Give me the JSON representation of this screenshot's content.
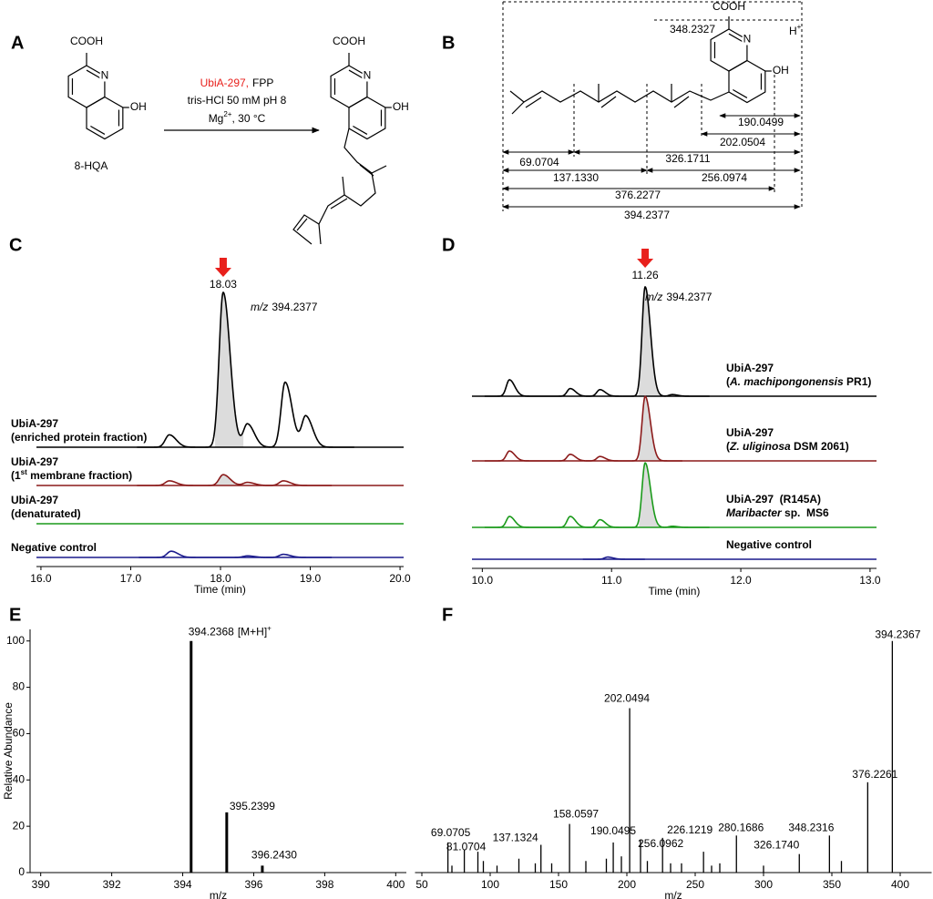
{
  "panel_labels": [
    "A",
    "B",
    "C",
    "D",
    "E",
    "F"
  ],
  "panels": {
    "A": {
      "reactant": {
        "cooh": "COOH",
        "n": "N",
        "oh": "OH",
        "name": "8-HQA"
      },
      "conditions": {
        "enzyme": "UbiA-297,",
        "cofactor": "FPP",
        "buffer": "tris-HCl 50 mM pH 8",
        "metal": "Mg",
        "charge": "2+",
        "temperature": ", 30 °C"
      },
      "product": {
        "cooh": "COOH",
        "n": "N",
        "oh": "OH"
      }
    },
    "B": {
      "cooh": "COOH",
      "n": "N",
      "oh": "OH",
      "proton": "H",
      "proton_charge": "+",
      "parent_fragment": "348.2327",
      "fragments": [
        "190.0499",
        "202.0504",
        "69.0704",
        "326.1711",
        "137.1330",
        "256.0974",
        "376.2277",
        "394.2377"
      ]
    }
  },
  "chart_data": [
    {
      "type": "chromatogram",
      "xlabel": "Time (min)",
      "xlim": [
        15.95,
        20.04
      ],
      "xticks": [
        {
          "value": 16,
          "label": "16.0"
        },
        {
          "value": 17,
          "label": "17.0"
        },
        {
          "value": 18,
          "label": "18.0"
        },
        {
          "value": 19,
          "label": "19.0"
        },
        {
          "value": 20,
          "label": "20.0"
        }
      ],
      "peak_label": 18.03,
      "annotation": {
        "prefix": "m/z",
        "text": "394.2377"
      },
      "legend": "left",
      "series": [
        {
          "name": "UbiA-297",
          "detail": [
            {
              "text": "(enriched protein fraction)"
            }
          ],
          "color": "#000000",
          "x": [
            17.43,
            18.03,
            18.3,
            18.72,
            18.95
          ],
          "values": [
            0.08,
            1.0,
            0.15,
            0.42,
            0.2
          ]
        },
        {
          "name": "UbiA-297",
          "detail": [
            {
              "text": "(1"
            },
            {
              "text": "st",
              "style": "superscript"
            },
            {
              "text": " membrane fraction)"
            }
          ],
          "color": "#8b1a1a",
          "x": [
            17.43,
            18.03,
            18.3,
            18.7
          ],
          "values": [
            0.03,
            0.07,
            0.02,
            0.03
          ]
        },
        {
          "name": "UbiA-297",
          "detail": [
            {
              "text": "(denaturated)"
            }
          ],
          "color": "#1a9a1a",
          "x": [],
          "values": []
        },
        {
          "name": "Negative control",
          "color": "#1a1a8c",
          "x": [
            17.45,
            18.3,
            18.7
          ],
          "values": [
            0.04,
            0.01,
            0.02
          ]
        }
      ]
    },
    {
      "type": "chromatogram",
      "xlabel": "Time (min)",
      "xlim": [
        9.92,
        13.05
      ],
      "xticks": [
        {
          "value": 10,
          "label": "10.0"
        },
        {
          "value": 11,
          "label": "11.0"
        },
        {
          "value": 12,
          "label": "12.0"
        },
        {
          "value": 13,
          "label": "13.0"
        }
      ],
      "peak_label": 11.26,
      "annotation": {
        "prefix": "m/z",
        "text": "394.2377"
      },
      "legend": "right",
      "series": [
        {
          "name": "UbiA-297",
          "detail": [
            {
              "text": "("
            },
            {
              "text": "A. machipongonensis",
              "style": "italic"
            },
            {
              "text": " PR1)"
            }
          ],
          "color": "#000000",
          "x": [
            10.21,
            10.68,
            10.91,
            11.26,
            11.47
          ],
          "values": [
            0.15,
            0.07,
            0.06,
            1.0,
            0.015
          ]
        },
        {
          "name": "UbiA-297",
          "detail": [
            {
              "text": "("
            },
            {
              "text": "Z. uliginosa",
              "style": "italic"
            },
            {
              "text": " DSM 2061)"
            }
          ],
          "color": "#8b1a1a",
          "x": [
            10.21,
            10.68,
            10.91,
            11.26
          ],
          "values": [
            0.09,
            0.06,
            0.04,
            0.59
          ]
        },
        {
          "name": "UbiA-297  (R145A)",
          "detail": [
            {
              "text": "Maribacter",
              "style": "italic"
            },
            {
              "text": " sp.  MS6"
            }
          ],
          "color": "#1a9a1a",
          "x": [
            10.21,
            10.68,
            10.91,
            11.26,
            11.47
          ],
          "values": [
            0.1,
            0.1,
            0.07,
            0.59,
            0.01
          ]
        },
        {
          "name": "Negative control",
          "color": "#1a1a8c",
          "x": [
            10.97
          ],
          "values": [
            0.02
          ]
        }
      ]
    },
    {
      "type": "spectrum",
      "xlabel": "m/z",
      "ylabel": "Relative Abundance",
      "xlim": [
        389.7,
        400.3
      ],
      "ylim": [
        0,
        105
      ],
      "xticks": [
        390,
        392,
        394,
        396,
        398,
        400
      ],
      "yticks": [
        0,
        20,
        40,
        60,
        80,
        100
      ],
      "x": [
        394.2368,
        395.2399,
        396.243
      ],
      "values": [
        100,
        26,
        3
      ],
      "x_labels": [
        "394.2368",
        "395.2399",
        "396.2430"
      ],
      "label_colors": [
        "#000000",
        "#000000",
        "#000000"
      ],
      "annotation": {
        "text": "[M+H]",
        "sup": "+"
      }
    },
    {
      "type": "spectrum",
      "xlabel": "m/z",
      "xlim": [
        45,
        423
      ],
      "ylim": [
        0,
        105
      ],
      "xticks": [
        50,
        100,
        150,
        200,
        250,
        300,
        350,
        400
      ],
      "x": [
        69.0705,
        72,
        81.0704,
        91,
        95,
        105,
        121,
        133,
        137.1324,
        145,
        158.0597,
        170,
        185,
        190.0495,
        196,
        202.0494,
        210,
        215,
        226.1219,
        232,
        240,
        256.0962,
        262,
        268,
        280.1686,
        300,
        326.174,
        348.2316,
        357,
        376.2261,
        394.2367
      ],
      "values": [
        13,
        3,
        10,
        9,
        5,
        3,
        6,
        4,
        12,
        4,
        21,
        5,
        6,
        13,
        7,
        71,
        14,
        5,
        15,
        4,
        4,
        9,
        3,
        4,
        16,
        3,
        8,
        16,
        5,
        39,
        100
      ],
      "x_labels": [
        "69.0705",
        null,
        "81.0704",
        null,
        null,
        null,
        null,
        null,
        "137.1324",
        null,
        "158.0597",
        null,
        null,
        "190.0495",
        null,
        "202.0494",
        null,
        null,
        "226.1219",
        null,
        null,
        "256.0962",
        null,
        null,
        "280.1686",
        null,
        "326.1740",
        "348.2316",
        null,
        "376.2261",
        "394.2367"
      ],
      "label_colors": [
        "#e8201c",
        null,
        "#000000",
        null,
        null,
        null,
        null,
        null,
        "#e8201c",
        null,
        "#000000",
        null,
        null,
        "#e8201c",
        null,
        "#e8201c",
        null,
        null,
        "#000000",
        null,
        null,
        "#e8201c",
        null,
        null,
        "#000000",
        null,
        "#e8201c",
        "#e8201c",
        null,
        "#e8201c",
        "#e8201c"
      ]
    }
  ]
}
